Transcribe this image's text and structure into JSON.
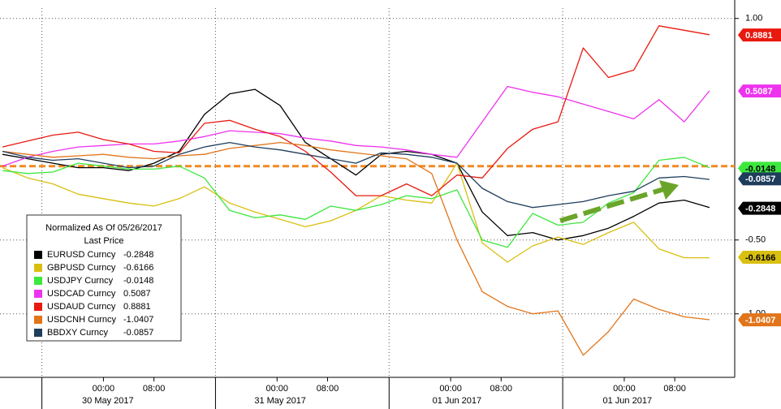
{
  "chart_data": {
    "type": "line",
    "legend_title": "Normalized As Of 05/26/2017",
    "legend_subtitle": "Last Price",
    "x": [
      0,
      4,
      8,
      12,
      16,
      20,
      24,
      28,
      32,
      36,
      40,
      44,
      48,
      52,
      56,
      60,
      64,
      68,
      72,
      76,
      80,
      84,
      88,
      92,
      96,
      100,
      104,
      108,
      112
    ],
    "xlim": [
      0,
      116
    ],
    "xticks": [
      {
        "value": 16,
        "label": "00:00"
      },
      {
        "value": 24,
        "label": "08:00"
      },
      {
        "value": 43.5,
        "label": "00:00"
      },
      {
        "value": 51.5,
        "label": "08:00"
      },
      {
        "value": 71,
        "label": "00:00"
      },
      {
        "value": 79,
        "label": "08:00"
      },
      {
        "value": 98.5,
        "label": "00:00"
      },
      {
        "value": 106.5,
        "label": "08:00"
      }
    ],
    "xday_ticks": [
      {
        "value": 16.7,
        "label": "30 May 2017"
      },
      {
        "value": 44,
        "label": "31 May 2017"
      },
      {
        "value": 72,
        "label": "01 Jun 2017"
      },
      {
        "value": 99,
        "label": "01 Jun 2017"
      }
    ],
    "ylim": [
      -1.43,
      1.07
    ],
    "yticks": [
      {
        "value": 1,
        "label": "1.00"
      },
      {
        "value": -0.5,
        "label": "-0.50"
      },
      {
        "value": -1,
        "label": "-1.00"
      }
    ],
    "reference_line": {
      "value": 0,
      "color": "#f08a24"
    },
    "grid": true,
    "legend_position": "lower-left",
    "series": [
      {
        "name": "EURUSD Curncy",
        "color": "#000000",
        "last_price": -0.2848,
        "values": [
          0.08,
          0.05,
          0.02,
          -0.01,
          -0.01,
          -0.03,
          0.02,
          0.1,
          0.35,
          0.49,
          0.52,
          0.41,
          0.16,
          0.05,
          -0.06,
          0.08,
          0.1,
          0.08,
          0.02,
          -0.31,
          -0.47,
          -0.45,
          -0.5,
          -0.47,
          -0.42,
          -0.34,
          -0.25,
          -0.23,
          -0.28
        ]
      },
      {
        "name": "GBPUSD Curncy",
        "color": "#d9bf10",
        "last_price": -0.6166,
        "values": [
          -0.01,
          -0.08,
          -0.12,
          -0.19,
          -0.22,
          -0.25,
          -0.27,
          -0.22,
          -0.14,
          -0.25,
          -0.31,
          -0.36,
          -0.41,
          -0.37,
          -0.3,
          -0.2,
          -0.23,
          -0.25,
          0.02,
          -0.52,
          -0.65,
          -0.54,
          -0.48,
          -0.53,
          -0.45,
          -0.38,
          -0.56,
          -0.62,
          -0.62
        ]
      },
      {
        "name": "USDJPY Curncy",
        "color": "#3de83d",
        "last_price": -0.0148,
        "values": [
          -0.03,
          -0.05,
          -0.04,
          0.02,
          0.0,
          -0.02,
          -0.02,
          0.0,
          -0.08,
          -0.3,
          -0.35,
          -0.33,
          -0.36,
          -0.27,
          -0.3,
          -0.26,
          -0.2,
          -0.22,
          -0.16,
          -0.5,
          -0.55,
          -0.32,
          -0.4,
          -0.38,
          -0.25,
          -0.18,
          0.04,
          0.06,
          -0.01
        ]
      },
      {
        "name": "USDCAD Curncy",
        "color": "#ee33ee",
        "last_price": 0.5087,
        "values": [
          0.0,
          0.06,
          0.1,
          0.13,
          0.14,
          0.15,
          0.15,
          0.17,
          0.2,
          0.24,
          0.23,
          0.22,
          0.19,
          0.17,
          0.14,
          0.13,
          0.11,
          0.08,
          0.06,
          0.3,
          0.54,
          0.5,
          0.47,
          0.42,
          0.37,
          0.32,
          0.45,
          0.3,
          0.51
        ]
      },
      {
        "name": "USDAUD Curncy",
        "color": "#e8190f",
        "last_price": 0.8881,
        "values": [
          0.13,
          0.17,
          0.21,
          0.23,
          0.18,
          0.15,
          0.1,
          0.09,
          0.29,
          0.31,
          0.25,
          0.2,
          0.1,
          -0.04,
          -0.2,
          -0.2,
          -0.12,
          -0.2,
          -0.06,
          -0.08,
          0.12,
          0.25,
          0.3,
          0.8,
          0.6,
          0.65,
          0.95,
          0.92,
          0.89
        ]
      },
      {
        "name": "USDCNH Curncy",
        "color": "#e2741a",
        "last_price": -1.0407,
        "values": [
          0.1,
          0.08,
          0.06,
          0.07,
          0.08,
          0.06,
          0.05,
          0.07,
          0.08,
          0.12,
          0.14,
          0.16,
          0.14,
          0.11,
          0.09,
          0.07,
          0.05,
          -0.05,
          -0.5,
          -0.85,
          -0.95,
          -1.0,
          -0.98,
          -1.28,
          -1.12,
          -0.9,
          -0.97,
          -1.02,
          -1.04
        ]
      },
      {
        "name": "BBDXY Curncy",
        "color": "#1e3d5c",
        "last_price": -0.0857,
        "values": [
          0.1,
          0.06,
          0.04,
          0.05,
          0.02,
          -0.01,
          0.0,
          0.08,
          0.13,
          0.16,
          0.13,
          0.11,
          0.08,
          0.05,
          0.02,
          0.09,
          0.08,
          0.06,
          0.02,
          -0.15,
          -0.24,
          -0.28,
          -0.26,
          -0.24,
          -0.2,
          -0.17,
          -0.08,
          -0.07,
          -0.09
        ]
      }
    ]
  }
}
